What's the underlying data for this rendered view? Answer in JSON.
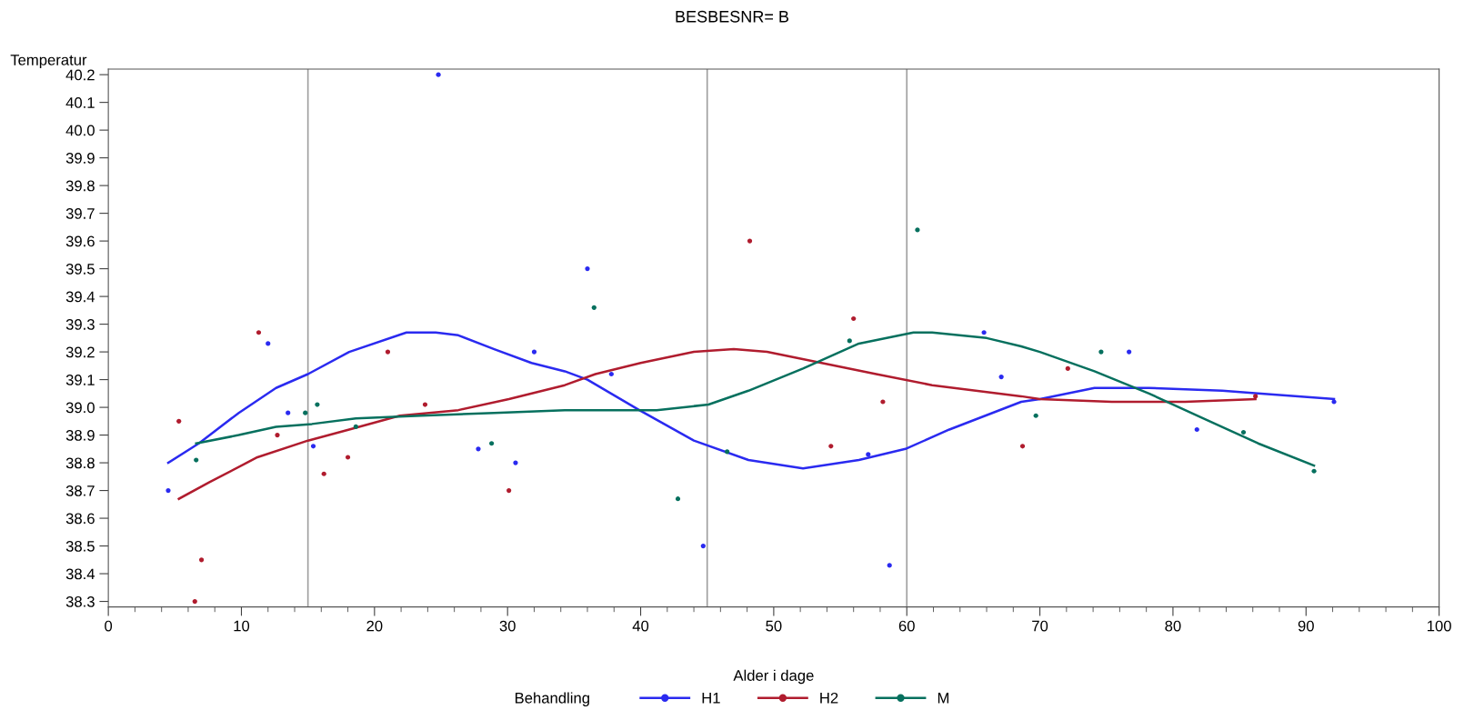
{
  "chart_data": {
    "type": "scatter",
    "title": "BESBESNR= B",
    "xlabel": "Alder i dage",
    "ylabel": "Temperatur",
    "legend_title": "Behandling",
    "legend": "bottom",
    "grid": false,
    "xlim": [
      0,
      100
    ],
    "ylim": [
      38.28,
      40.22
    ],
    "xticks": [
      0,
      {
        "value": 2,
        "label": null
      },
      {
        "value": 4,
        "label": null
      },
      {
        "value": 6,
        "label": null
      },
      {
        "value": 8,
        "label": null
      },
      10,
      {
        "value": 12,
        "label": null
      },
      {
        "value": 14,
        "label": null
      },
      {
        "value": 16,
        "label": null
      },
      {
        "value": 18,
        "label": null
      },
      20,
      {
        "value": 22,
        "label": null
      },
      {
        "value": 24,
        "label": null
      },
      {
        "value": 26,
        "label": null
      },
      {
        "value": 28,
        "label": null
      },
      30,
      {
        "value": 32,
        "label": null
      },
      {
        "value": 34,
        "label": null
      },
      {
        "value": 36,
        "label": null
      },
      {
        "value": 38,
        "label": null
      },
      40,
      {
        "value": 42,
        "label": null
      },
      {
        "value": 44,
        "label": null
      },
      {
        "value": 46,
        "label": null
      },
      {
        "value": 48,
        "label": null
      },
      50,
      {
        "value": 52,
        "label": null
      },
      {
        "value": 54,
        "label": null
      },
      {
        "value": 56,
        "label": null
      },
      {
        "value": 58,
        "label": null
      },
      60,
      {
        "value": 62,
        "label": null
      },
      {
        "value": 64,
        "label": null
      },
      {
        "value": 66,
        "label": null
      },
      {
        "value": 68,
        "label": null
      },
      70,
      {
        "value": 72,
        "label": null
      },
      {
        "value": 74,
        "label": null
      },
      {
        "value": 76,
        "label": null
      },
      {
        "value": 78,
        "label": null
      },
      80,
      {
        "value": 82,
        "label": null
      },
      {
        "value": 84,
        "label": null
      },
      {
        "value": 86,
        "label": null
      },
      {
        "value": 88,
        "label": null
      },
      90,
      {
        "value": 92,
        "label": null
      },
      {
        "value": 94,
        "label": null
      },
      {
        "value": 96,
        "label": null
      },
      {
        "value": 98,
        "label": null
      },
      100
    ],
    "yticks": [
      38.3,
      38.4,
      38.5,
      38.6,
      38.7,
      38.8,
      38.9,
      {
        "value": 39,
        "label": "39.0"
      },
      39.1,
      39.2,
      39.3,
      39.4,
      39.5,
      39.6,
      39.7,
      39.8,
      39.9,
      {
        "value": 40,
        "label": "40.0"
      },
      40.1,
      40.2
    ],
    "ref_lines": [
      {
        "axis": "x",
        "value": 15,
        "color": "#a0a0a0"
      },
      {
        "axis": "x",
        "value": 45,
        "color": "#a0a0a0"
      },
      {
        "axis": "x",
        "value": 60,
        "color": "#a0a0a0"
      }
    ],
    "series": [
      {
        "name": "H1",
        "marker": "circle",
        "color": "#2a2af0",
        "x": [
          4.5,
          12.0,
          13.5,
          15.4,
          24.8,
          27.8,
          30.6,
          32.0,
          36.0,
          37.8,
          44.7,
          57.1,
          58.7,
          65.8,
          67.1,
          76.7,
          81.8,
          92.1
        ],
        "values": [
          38.7,
          39.23,
          38.98,
          38.86,
          40.2,
          38.85,
          38.8,
          39.2,
          39.5,
          39.12,
          38.5,
          38.83,
          38.43,
          39.27,
          39.11,
          39.2,
          38.92,
          39.02
        ]
      },
      {
        "name": "H2",
        "marker": "circle",
        "color": "#b01c2e",
        "x": [
          5.3,
          6.5,
          7.0,
          11.3,
          12.7,
          16.2,
          18.0,
          21.0,
          23.8,
          30.1,
          48.2,
          54.3,
          56.0,
          58.2,
          68.7,
          72.1,
          86.2
        ],
        "values": [
          38.95,
          38.3,
          38.45,
          39.27,
          38.9,
          38.76,
          38.82,
          39.2,
          39.01,
          38.7,
          39.6,
          38.86,
          39.32,
          39.02,
          38.86,
          39.14,
          39.04
        ]
      },
      {
        "name": "M",
        "marker": "circle",
        "color": "#06705e",
        "x": [
          6.6,
          14.8,
          15.7,
          18.6,
          28.8,
          36.5,
          42.8,
          46.5,
          55.7,
          60.8,
          69.7,
          74.6,
          85.3,
          90.6
        ],
        "values": [
          38.81,
          38.98,
          39.01,
          38.93,
          38.87,
          39.36,
          38.67,
          38.84,
          39.24,
          39.64,
          38.97,
          39.2,
          38.91,
          38.77
        ]
      },
      {
        "type": "line",
        "color": "#2a2af0",
        "x": [
          4.5,
          6.8,
          9.8,
          12.6,
          15.0,
          18.1,
          22.4,
          24.6,
          26.3,
          29.0,
          31.8,
          34.3,
          36.0,
          39.9,
          44.0,
          48.1,
          52.2,
          56.4,
          59.9,
          63.2,
          68.6,
          70.0,
          74.1,
          78.2,
          83.7,
          86.4,
          92.1
        ],
        "values": [
          38.8,
          38.87,
          38.98,
          39.07,
          39.12,
          39.2,
          39.27,
          39.27,
          39.26,
          39.21,
          39.16,
          39.13,
          39.1,
          38.99,
          38.88,
          38.81,
          38.78,
          38.81,
          38.85,
          38.92,
          39.02,
          39.03,
          39.07,
          39.07,
          39.06,
          39.05,
          39.03
        ]
      },
      {
        "type": "line",
        "color": "#b01c2e",
        "x": [
          5.3,
          7.6,
          11.2,
          15.0,
          18.1,
          21.9,
          26.3,
          30.1,
          34.3,
          36.6,
          40.0,
          44.0,
          47.0,
          49.5,
          53.6,
          57.7,
          61.9,
          68.6,
          70.0,
          75.4,
          80.9,
          86.2
        ],
        "values": [
          38.67,
          38.73,
          38.82,
          38.88,
          38.92,
          38.97,
          38.99,
          39.03,
          39.08,
          39.12,
          39.16,
          39.2,
          39.21,
          39.2,
          39.16,
          39.12,
          39.08,
          39.04,
          39.03,
          39.02,
          39.02,
          39.03
        ]
      },
      {
        "type": "line",
        "color": "#06705e",
        "x": [
          6.6,
          9.8,
          12.6,
          15.3,
          18.6,
          23.5,
          29.0,
          34.3,
          37.1,
          41.2,
          45.1,
          48.1,
          52.2,
          56.4,
          60.5,
          61.9,
          66.0,
          68.6,
          70.0,
          74.1,
          78.2,
          82.3,
          86.4,
          90.6
        ],
        "values": [
          38.87,
          38.9,
          38.93,
          38.94,
          38.96,
          38.97,
          38.98,
          38.99,
          38.99,
          38.99,
          39.01,
          39.06,
          39.14,
          39.23,
          39.27,
          39.27,
          39.25,
          39.22,
          39.2,
          39.13,
          39.05,
          38.96,
          38.87,
          38.79
        ]
      }
    ]
  }
}
